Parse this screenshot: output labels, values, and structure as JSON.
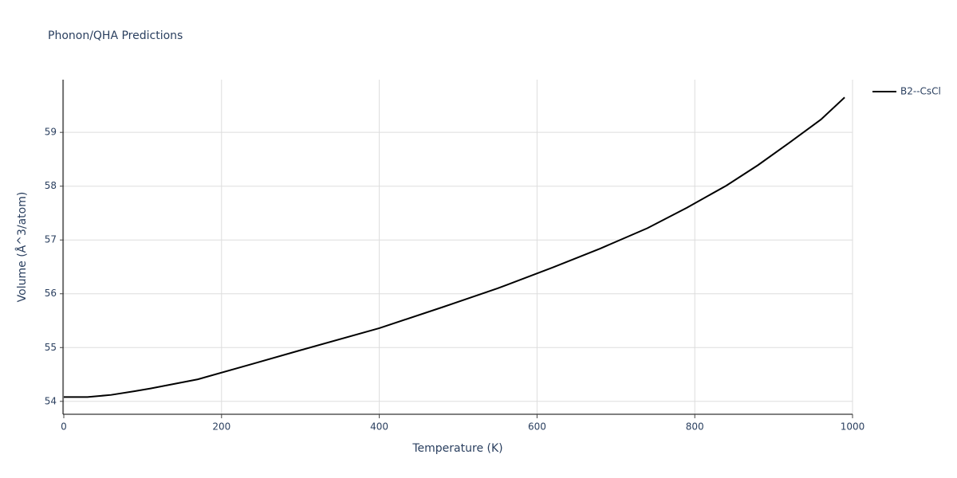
{
  "chart_data": {
    "type": "line",
    "title": "Phonon/QHA Predictions",
    "x_label": "Temperature (K)",
    "y_label": "Volume (Å^3/atom)",
    "x": [
      0,
      30,
      60,
      90,
      110,
      170,
      240,
      300,
      400,
      480,
      550,
      620,
      680,
      740,
      790,
      840,
      880,
      920,
      960,
      990
    ],
    "series": [
      {
        "name": "B2--CsCl",
        "color": "#000000",
        "values": [
          54.08,
          54.08,
          54.12,
          54.19,
          54.24,
          54.41,
          54.7,
          54.95,
          55.36,
          55.75,
          56.1,
          56.49,
          56.84,
          57.22,
          57.6,
          58.01,
          58.39,
          58.81,
          59.24,
          59.65
        ]
      }
    ],
    "xlim": [
      0,
      1000
    ],
    "xticks": [
      0,
      200,
      400,
      600,
      800,
      1000
    ],
    "ylim": [
      53.76,
      59.98
    ],
    "yticks": [
      54,
      55,
      56,
      57,
      58,
      59
    ],
    "grid": true,
    "legend_position": "top-right"
  }
}
